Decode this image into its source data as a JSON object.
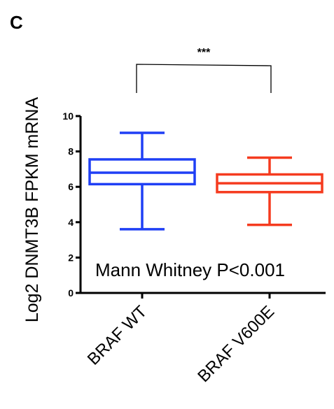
{
  "panel_label": "C",
  "chart_data": {
    "type": "box",
    "ylabel": "Log2 DNMT3B FPKM mRNA",
    "ylim": [
      0,
      10
    ],
    "yticks": [
      0,
      2,
      4,
      6,
      8,
      10
    ],
    "categories": [
      "BRAF WT",
      "BRAF V600E"
    ],
    "boxes": [
      {
        "category": "BRAF WT",
        "min": 3.6,
        "q1": 6.15,
        "median": 6.8,
        "q3": 7.55,
        "max": 9.05,
        "color": "#1f3ff5"
      },
      {
        "category": "BRAF V600E",
        "min": 3.85,
        "q1": 5.7,
        "median": 6.2,
        "q3": 6.7,
        "max": 7.65,
        "color": "#f53b1f"
      }
    ],
    "annotation": "Mann Whitney P<0.001",
    "significance": "***"
  }
}
